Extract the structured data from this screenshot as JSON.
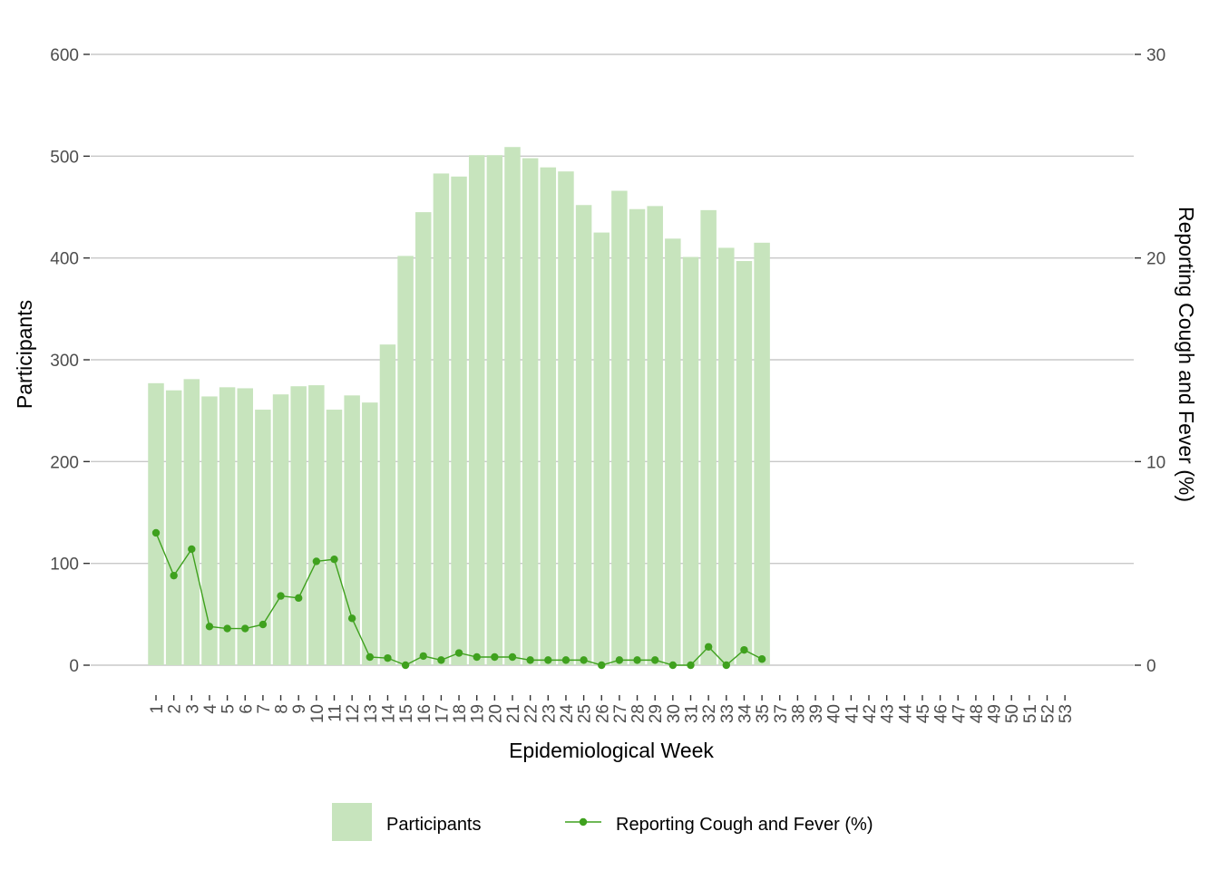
{
  "chart_data": {
    "type": "bar",
    "xlabel": "Epidemiological Week",
    "ylabel": "Participants",
    "y2label": "Reporting Cough and Fever (%)",
    "ylim": [
      0,
      600
    ],
    "y2lim": [
      0,
      30
    ],
    "yticks": [
      0,
      100,
      200,
      300,
      400,
      500,
      600
    ],
    "y2ticks": [
      0,
      10,
      20,
      30
    ],
    "grid": true,
    "legend_position": "bottom",
    "categories": [
      "1",
      "2",
      "3",
      "4",
      "5",
      "6",
      "7",
      "8",
      "9",
      "10",
      "11",
      "12",
      "13",
      "14",
      "15",
      "16",
      "17",
      "18",
      "19",
      "20",
      "21",
      "22",
      "23",
      "24",
      "25",
      "26",
      "27",
      "28",
      "29",
      "30",
      "31",
      "32",
      "33",
      "34",
      "35",
      "37",
      "38",
      "39",
      "40",
      "41",
      "42",
      "43",
      "44",
      "45",
      "46",
      "47",
      "48",
      "49",
      "50",
      "51",
      "52",
      "53"
    ],
    "series": [
      {
        "name": "Participants",
        "kind": "bar",
        "axis": "left",
        "color": "#c7e4bd",
        "values": [
          277,
          270,
          281,
          264,
          273,
          272,
          251,
          266,
          274,
          275,
          251,
          265,
          258,
          315,
          402,
          445,
          483,
          480,
          501,
          501,
          509,
          498,
          489,
          485,
          452,
          425,
          466,
          448,
          451,
          419,
          401,
          447,
          410,
          397,
          415,
          null,
          null,
          null,
          null,
          null,
          null,
          null,
          null,
          null,
          null,
          null,
          null,
          null,
          null,
          null,
          null,
          null
        ]
      },
      {
        "name": "Reporting Cough and Fever (%)",
        "kind": "line",
        "axis": "right",
        "color": "#3fa11e",
        "values": [
          6.5,
          4.4,
          5.7,
          1.9,
          1.8,
          1.8,
          2.0,
          3.4,
          3.3,
          5.1,
          5.2,
          2.3,
          0.4,
          0.35,
          0.0,
          0.45,
          0.25,
          0.6,
          0.4,
          0.4,
          0.4,
          0.25,
          0.25,
          0.25,
          0.25,
          0.0,
          0.25,
          0.25,
          0.25,
          0.0,
          0.0,
          0.9,
          0.0,
          0.75,
          0.3,
          null,
          null,
          null,
          null,
          null,
          null,
          null,
          null,
          null,
          null,
          null,
          null,
          null,
          null,
          null,
          null,
          null
        ]
      }
    ]
  }
}
